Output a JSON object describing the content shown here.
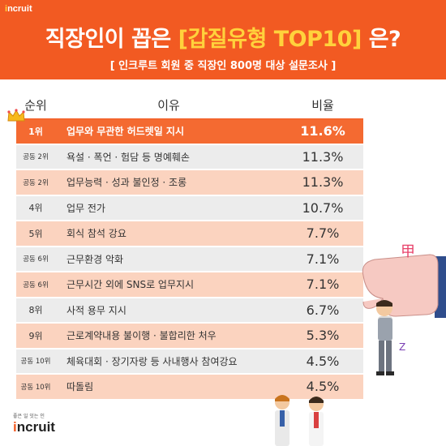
{
  "brand": {
    "logo": "Incruit",
    "logo_dot": "i",
    "tagline": "좋은 일 잇는 인"
  },
  "title": {
    "prefix": "직장인이 꼽은 ",
    "highlight": "[갑질유형 TOP10]",
    "suffix": " 은?"
  },
  "subtitle": "[ 인크루트 회원 중 직장인 800명 대상 설문조사 ]",
  "table": {
    "headers": {
      "rank": "순위",
      "reason": "이유",
      "ratio": "비율"
    },
    "rows": [
      {
        "rank": "1위",
        "reason": "업무와 무관한 허드렛일 지시",
        "ratio": "11.6%"
      },
      {
        "rank": "공동 2위",
        "reason": "욕설 · 폭언 · 험담 등 명예훼손",
        "ratio": "11.3%"
      },
      {
        "rank": "공동 2위",
        "reason": "업무능력 · 성과 불인정 · 조롱",
        "ratio": "11.3%"
      },
      {
        "rank": "4위",
        "reason": "업무 전가",
        "ratio": "10.7%"
      },
      {
        "rank": "5위",
        "reason": "회식 참석 강요",
        "ratio": "7.7%"
      },
      {
        "rank": "공동 6위",
        "reason": "근무환경 악화",
        "ratio": "7.1%"
      },
      {
        "rank": "공동 6위",
        "reason": "근무시간 외에 SNS로 업무지시",
        "ratio": "7.1%"
      },
      {
        "rank": "8위",
        "reason": "사적 용무 지시",
        "ratio": "6.7%"
      },
      {
        "rank": "9위",
        "reason": "근로계약내용 불이행 · 불합리한 처우",
        "ratio": "5.3%"
      },
      {
        "rank": "공동 10위",
        "reason": "체육대회 · 장기자랑 등 사내행사 참여강요",
        "ratio": "4.5%"
      },
      {
        "rank": "공동 10위",
        "reason": "따돌림",
        "ratio": "4.5%"
      }
    ]
  },
  "illustration": {
    "gap_glyph": "甲",
    "sleep_glyph": "Z",
    "icons": [
      "crown-icon",
      "giant-hand-icon",
      "dangling-worker-icon",
      "worker-icon"
    ]
  },
  "colors": {
    "brand_orange": "#f25a22",
    "first_row": "#f46a31",
    "peach_row": "#fbd3bf",
    "gray_row": "#ececec",
    "highlight_yellow": "#ffd23c"
  },
  "chart_data": {
    "type": "table",
    "title": "직장인이 꼽은 [갑질유형 TOP10] 은?",
    "subtitle": "[ 인크루트 회원 중 직장인 800명 대상 설문조사 ]",
    "columns": [
      "순위",
      "이유",
      "비율"
    ],
    "categories": [
      "업무와 무관한 허드렛일 지시",
      "욕설 · 폭언 · 험담 등 명예훼손",
      "업무능력 · 성과 불인정 · 조롱",
      "업무 전가",
      "회식 참석 강요",
      "근무환경 악화",
      "근무시간 외에 SNS로 업무지시",
      "사적 용무 지시",
      "근로계약내용 불이행 · 불합리한 처우",
      "체육대회 · 장기자랑 등 사내행사 참여강요",
      "따돌림"
    ],
    "values": [
      11.6,
      11.3,
      11.3,
      10.7,
      7.7,
      7.1,
      7.1,
      6.7,
      5.3,
      4.5,
      4.5
    ],
    "unit": "%"
  }
}
